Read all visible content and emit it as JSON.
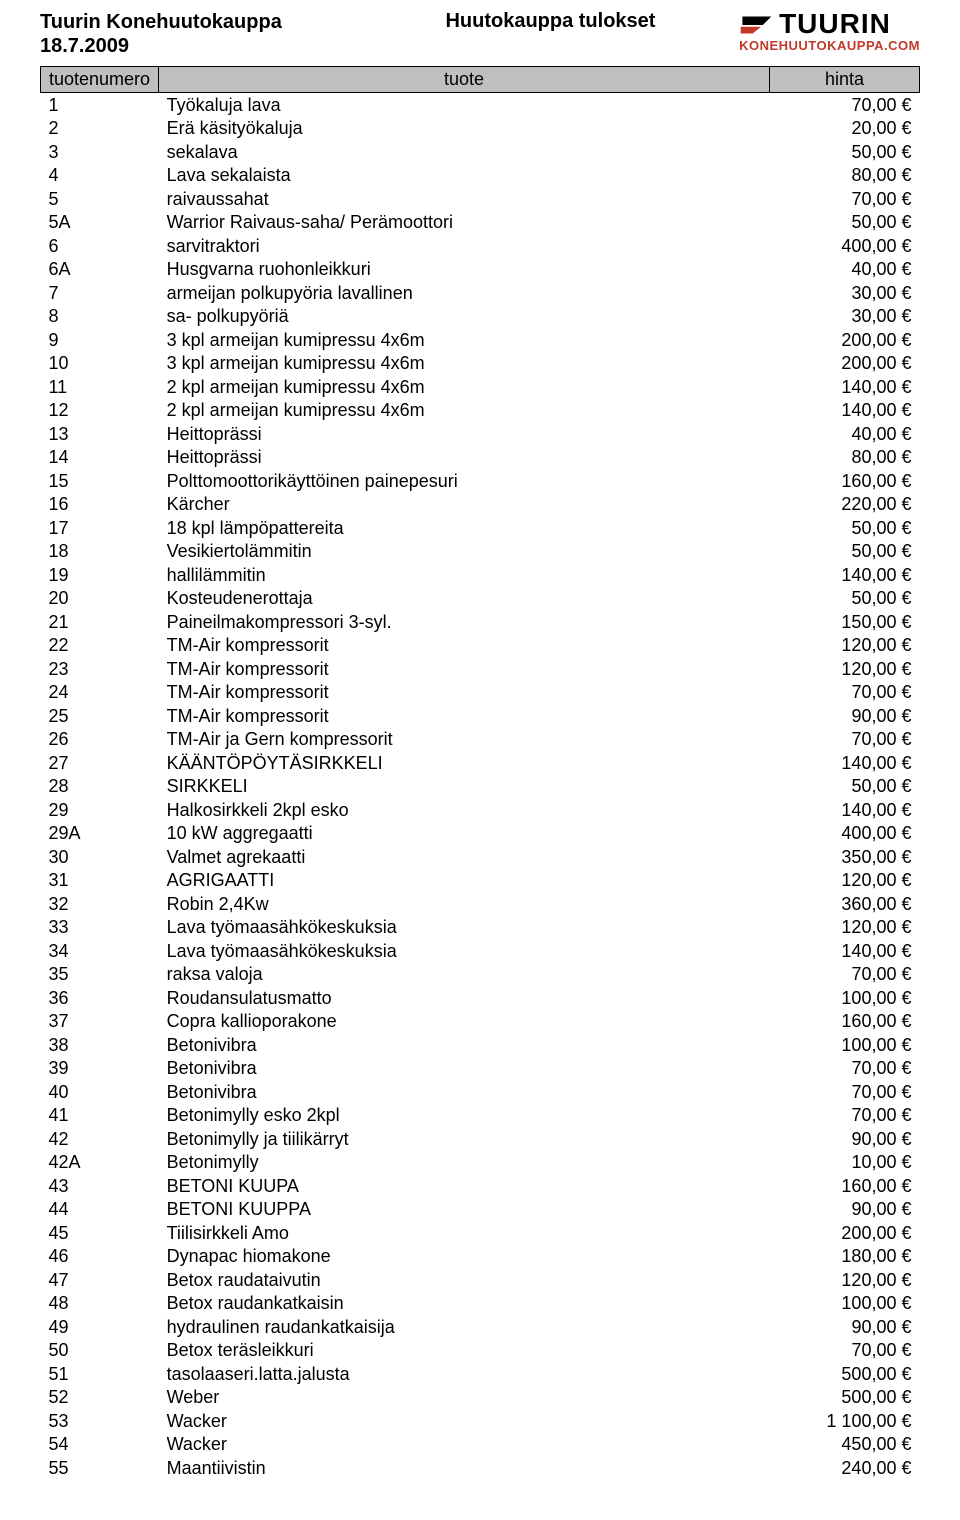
{
  "header": {
    "title": "Tuurin Konehuutokauppa",
    "date": "18.7.2009",
    "subtitle": "Huutokauppa tulokset",
    "logo_main": "TUURIN",
    "logo_sub": "KONEHUUTOKAUPPA.COM",
    "logo_shape_fill_black": "#000000",
    "logo_shape_fill_red": "#c0392b"
  },
  "table": {
    "columns": {
      "num": "tuotenumero",
      "name": "tuote",
      "price": "hinta"
    },
    "header_bg": "#bfbfbf",
    "border_color": "#000000",
    "rows": [
      {
        "n": "1",
        "name": "Työkaluja lava",
        "p": "70,00 €"
      },
      {
        "n": "2",
        "name": "Erä käsityökaluja",
        "p": "20,00 €"
      },
      {
        "n": "3",
        "name": "sekalava",
        "p": "50,00 €"
      },
      {
        "n": "4",
        "name": "Lava sekalaista",
        "p": "80,00 €"
      },
      {
        "n": "5",
        "name": "raivaussahat",
        "p": "70,00 €"
      },
      {
        "n": "5A",
        "name": "Warrior Raivaus-saha/ Perämoottori",
        "p": "50,00 €"
      },
      {
        "n": "6",
        "name": "sarvitraktori",
        "p": "400,00 €"
      },
      {
        "n": "6A",
        "name": "Husgvarna ruohonleikkuri",
        "p": "40,00 €"
      },
      {
        "n": "7",
        "name": "armeijan polkupyöria lavallinen",
        "p": "30,00 €"
      },
      {
        "n": "8",
        "name": "sa- polkupyöriä",
        "p": "30,00 €"
      },
      {
        "n": "9",
        "name": "3 kpl armeijan kumipressu 4x6m",
        "p": "200,00 €"
      },
      {
        "n": "10",
        "name": "3 kpl armeijan kumipressu 4x6m",
        "p": "200,00 €"
      },
      {
        "n": "11",
        "name": "2 kpl armeijan kumipressu 4x6m",
        "p": "140,00 €"
      },
      {
        "n": "12",
        "name": "2 kpl armeijan kumipressu 4x6m",
        "p": "140,00 €"
      },
      {
        "n": "13",
        "name": "Heittoprässi",
        "p": "40,00 €"
      },
      {
        "n": "14",
        "name": "Heittoprässi",
        "p": "80,00 €"
      },
      {
        "n": "15",
        "name": "Polttomoottorikäyttöinen painepesuri",
        "p": "160,00 €"
      },
      {
        "n": "16",
        "name": "Kärcher",
        "p": "220,00 €"
      },
      {
        "n": "17",
        "name": "18 kpl lämpöpattereita",
        "p": "50,00 €"
      },
      {
        "n": "18",
        "name": "Vesikiertolämmitin",
        "p": "50,00 €"
      },
      {
        "n": "19",
        "name": "hallilämmitin",
        "p": "140,00 €"
      },
      {
        "n": "20",
        "name": "Kosteudenerottaja",
        "p": "50,00 €"
      },
      {
        "n": "21",
        "name": "Paineilmakompressori 3-syl.",
        "p": "150,00 €"
      },
      {
        "n": "22",
        "name": "TM-Air kompressorit",
        "p": "120,00 €"
      },
      {
        "n": "23",
        "name": "TM-Air kompressorit",
        "p": "120,00 €"
      },
      {
        "n": "24",
        "name": "TM-Air kompressorit",
        "p": "70,00 €"
      },
      {
        "n": "25",
        "name": "TM-Air kompressorit",
        "p": "90,00 €"
      },
      {
        "n": "26",
        "name": "TM-Air ja Gern kompressorit",
        "p": "70,00 €"
      },
      {
        "n": "27",
        "name": "KÄÄNTÖPÖYTÄSIRKKELI",
        "p": "140,00 €"
      },
      {
        "n": "28",
        "name": "SIRKKELI",
        "p": "50,00 €"
      },
      {
        "n": "29",
        "name": "Halkosirkkeli 2kpl esko",
        "p": "140,00 €"
      },
      {
        "n": "29A",
        "name": "10 kW aggregaatti",
        "p": "400,00 €"
      },
      {
        "n": "30",
        "name": "Valmet agrekaatti",
        "p": "350,00 €"
      },
      {
        "n": "31",
        "name": "AGRIGAATTI",
        "p": "120,00 €"
      },
      {
        "n": "32",
        "name": "Robin 2,4Kw",
        "p": "360,00 €"
      },
      {
        "n": "33",
        "name": "Lava työmaasähkökeskuksia",
        "p": "120,00 €"
      },
      {
        "n": "34",
        "name": "Lava työmaasähkökeskuksia",
        "p": "140,00 €"
      },
      {
        "n": "35",
        "name": "raksa valoja",
        "p": "70,00 €"
      },
      {
        "n": "36",
        "name": "Roudansulatusmatto",
        "p": "100,00 €"
      },
      {
        "n": "37",
        "name": "Copra kallioporakone",
        "p": "160,00 €"
      },
      {
        "n": "38",
        "name": "Betonivibra",
        "p": "100,00 €"
      },
      {
        "n": "39",
        "name": "Betonivibra",
        "p": "70,00 €"
      },
      {
        "n": "40",
        "name": "Betonivibra",
        "p": "70,00 €"
      },
      {
        "n": "41",
        "name": "Betonimylly esko 2kpl",
        "p": "70,00 €"
      },
      {
        "n": "42",
        "name": "Betonimylly ja tiilikärryt",
        "p": "90,00 €"
      },
      {
        "n": "42A",
        "name": "Betonimylly",
        "p": "10,00 €"
      },
      {
        "n": "43",
        "name": "BETONI KUUPA",
        "p": "160,00 €"
      },
      {
        "n": "44",
        "name": "BETONI KUUPPA",
        "p": "90,00 €"
      },
      {
        "n": "45",
        "name": "Tiilisirkkeli Amo",
        "p": "200,00 €"
      },
      {
        "n": "46",
        "name": "Dynapac hiomakone",
        "p": "180,00 €"
      },
      {
        "n": "47",
        "name": "Betox raudataivutin",
        "p": "120,00 €"
      },
      {
        "n": "48",
        "name": "Betox raudankatkaisin",
        "p": "100,00 €"
      },
      {
        "n": "49",
        "name": "hydraulinen raudankatkaisija",
        "p": "90,00 €"
      },
      {
        "n": "50",
        "name": "Betox teräsleikkuri",
        "p": "70,00 €"
      },
      {
        "n": "51",
        "name": "tasolaaseri.latta.jalusta",
        "p": "500,00 €"
      },
      {
        "n": "52",
        "name": "Weber",
        "p": "500,00 €"
      },
      {
        "n": "53",
        "name": "Wacker",
        "p": "1 100,00 €"
      },
      {
        "n": "54",
        "name": "Wacker",
        "p": "450,00 €"
      },
      {
        "n": "55",
        "name": "Maantiivistin",
        "p": "240,00 €"
      }
    ]
  }
}
